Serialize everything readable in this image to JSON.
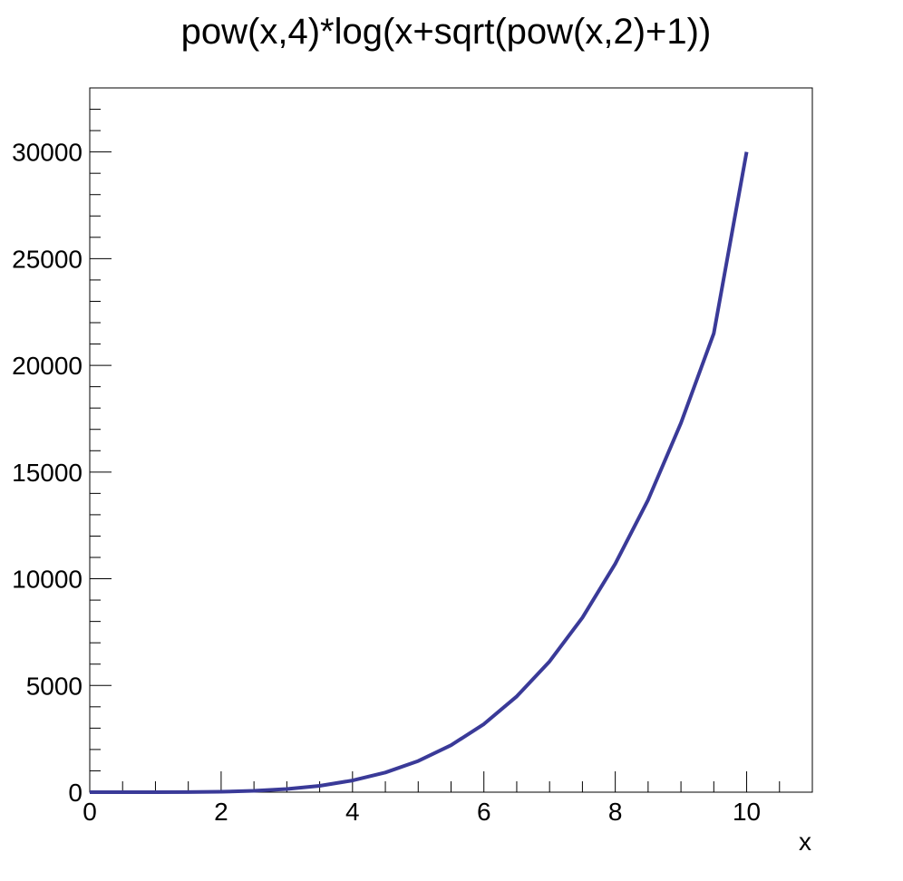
{
  "chart_data": {
    "type": "line",
    "title": "pow(x,4)*log(x+sqrt(pow(x,2)+1))",
    "xlabel": "x",
    "ylabel": "",
    "xlim": [
      0,
      11
    ],
    "ylim": [
      0,
      33000
    ],
    "grid": false,
    "legend": "none",
    "x_ticks": [
      0,
      2,
      4,
      6,
      8,
      10
    ],
    "y_ticks": [
      0,
      5000,
      10000,
      15000,
      20000,
      25000,
      30000
    ],
    "series": [
      {
        "color": "#3a3a98",
        "x": [
          0,
          0.5,
          1,
          1.5,
          2,
          2.5,
          3,
          3.5,
          4,
          4.5,
          5,
          5.5,
          6,
          6.5,
          7,
          7.5,
          8,
          8.5,
          9,
          9.5,
          10
        ],
        "y": [
          0,
          0.3,
          0.9,
          6.1,
          23.1,
          63.8,
          147,
          299,
          547,
          922,
          1460,
          2200,
          3190,
          4490,
          6130,
          8180,
          10700,
          13700,
          17300,
          21500,
          30000
        ]
      }
    ]
  }
}
